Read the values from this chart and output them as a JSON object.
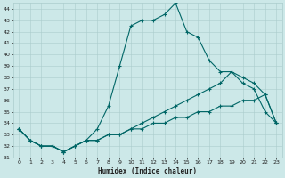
{
  "xlabel": "Humidex (Indice chaleur)",
  "xlim": [
    -0.5,
    23.5
  ],
  "ylim": [
    31,
    44.5
  ],
  "yticks": [
    31,
    32,
    33,
    34,
    35,
    36,
    37,
    38,
    39,
    40,
    41,
    42,
    43,
    44
  ],
  "xticks": [
    0,
    1,
    2,
    3,
    4,
    5,
    6,
    7,
    8,
    9,
    10,
    11,
    12,
    13,
    14,
    15,
    16,
    17,
    18,
    19,
    20,
    21,
    22,
    23
  ],
  "bg_color": "#cce8e8",
  "grid_color": "#aacccc",
  "line_color": "#006666",
  "line1_x": [
    0,
    1,
    2,
    3,
    4,
    5,
    6,
    7,
    8,
    9,
    10,
    11,
    12,
    13,
    14,
    15,
    16,
    17,
    18,
    19,
    20,
    21,
    22,
    23
  ],
  "line1_y": [
    33.5,
    32.5,
    32.0,
    32.0,
    31.5,
    32.0,
    32.5,
    33.5,
    35.5,
    39.0,
    42.5,
    43.0,
    43.0,
    43.5,
    44.5,
    42.0,
    41.5,
    39.5,
    38.5,
    38.5,
    37.5,
    37.0,
    35.0,
    34.0
  ],
  "line2_x": [
    0,
    1,
    2,
    3,
    4,
    5,
    6,
    7,
    8,
    9,
    10,
    11,
    12,
    13,
    14,
    15,
    16,
    17,
    18,
    19,
    20,
    21,
    22,
    23
  ],
  "line2_y": [
    33.5,
    32.5,
    32.0,
    32.0,
    31.5,
    32.0,
    32.5,
    32.5,
    33.0,
    33.0,
    33.5,
    34.0,
    34.5,
    35.0,
    35.5,
    36.0,
    36.5,
    37.0,
    37.5,
    38.5,
    38.0,
    37.5,
    36.5,
    34.0
  ],
  "line3_x": [
    0,
    1,
    2,
    3,
    4,
    5,
    6,
    7,
    8,
    9,
    10,
    11,
    12,
    13,
    14,
    15,
    16,
    17,
    18,
    19,
    20,
    21,
    22,
    23
  ],
  "line3_y": [
    33.5,
    32.5,
    32.0,
    32.0,
    31.5,
    32.0,
    32.5,
    32.5,
    33.0,
    33.0,
    33.5,
    33.5,
    34.0,
    34.0,
    34.5,
    34.5,
    35.0,
    35.0,
    35.5,
    35.5,
    36.0,
    36.0,
    36.5,
    34.0
  ]
}
